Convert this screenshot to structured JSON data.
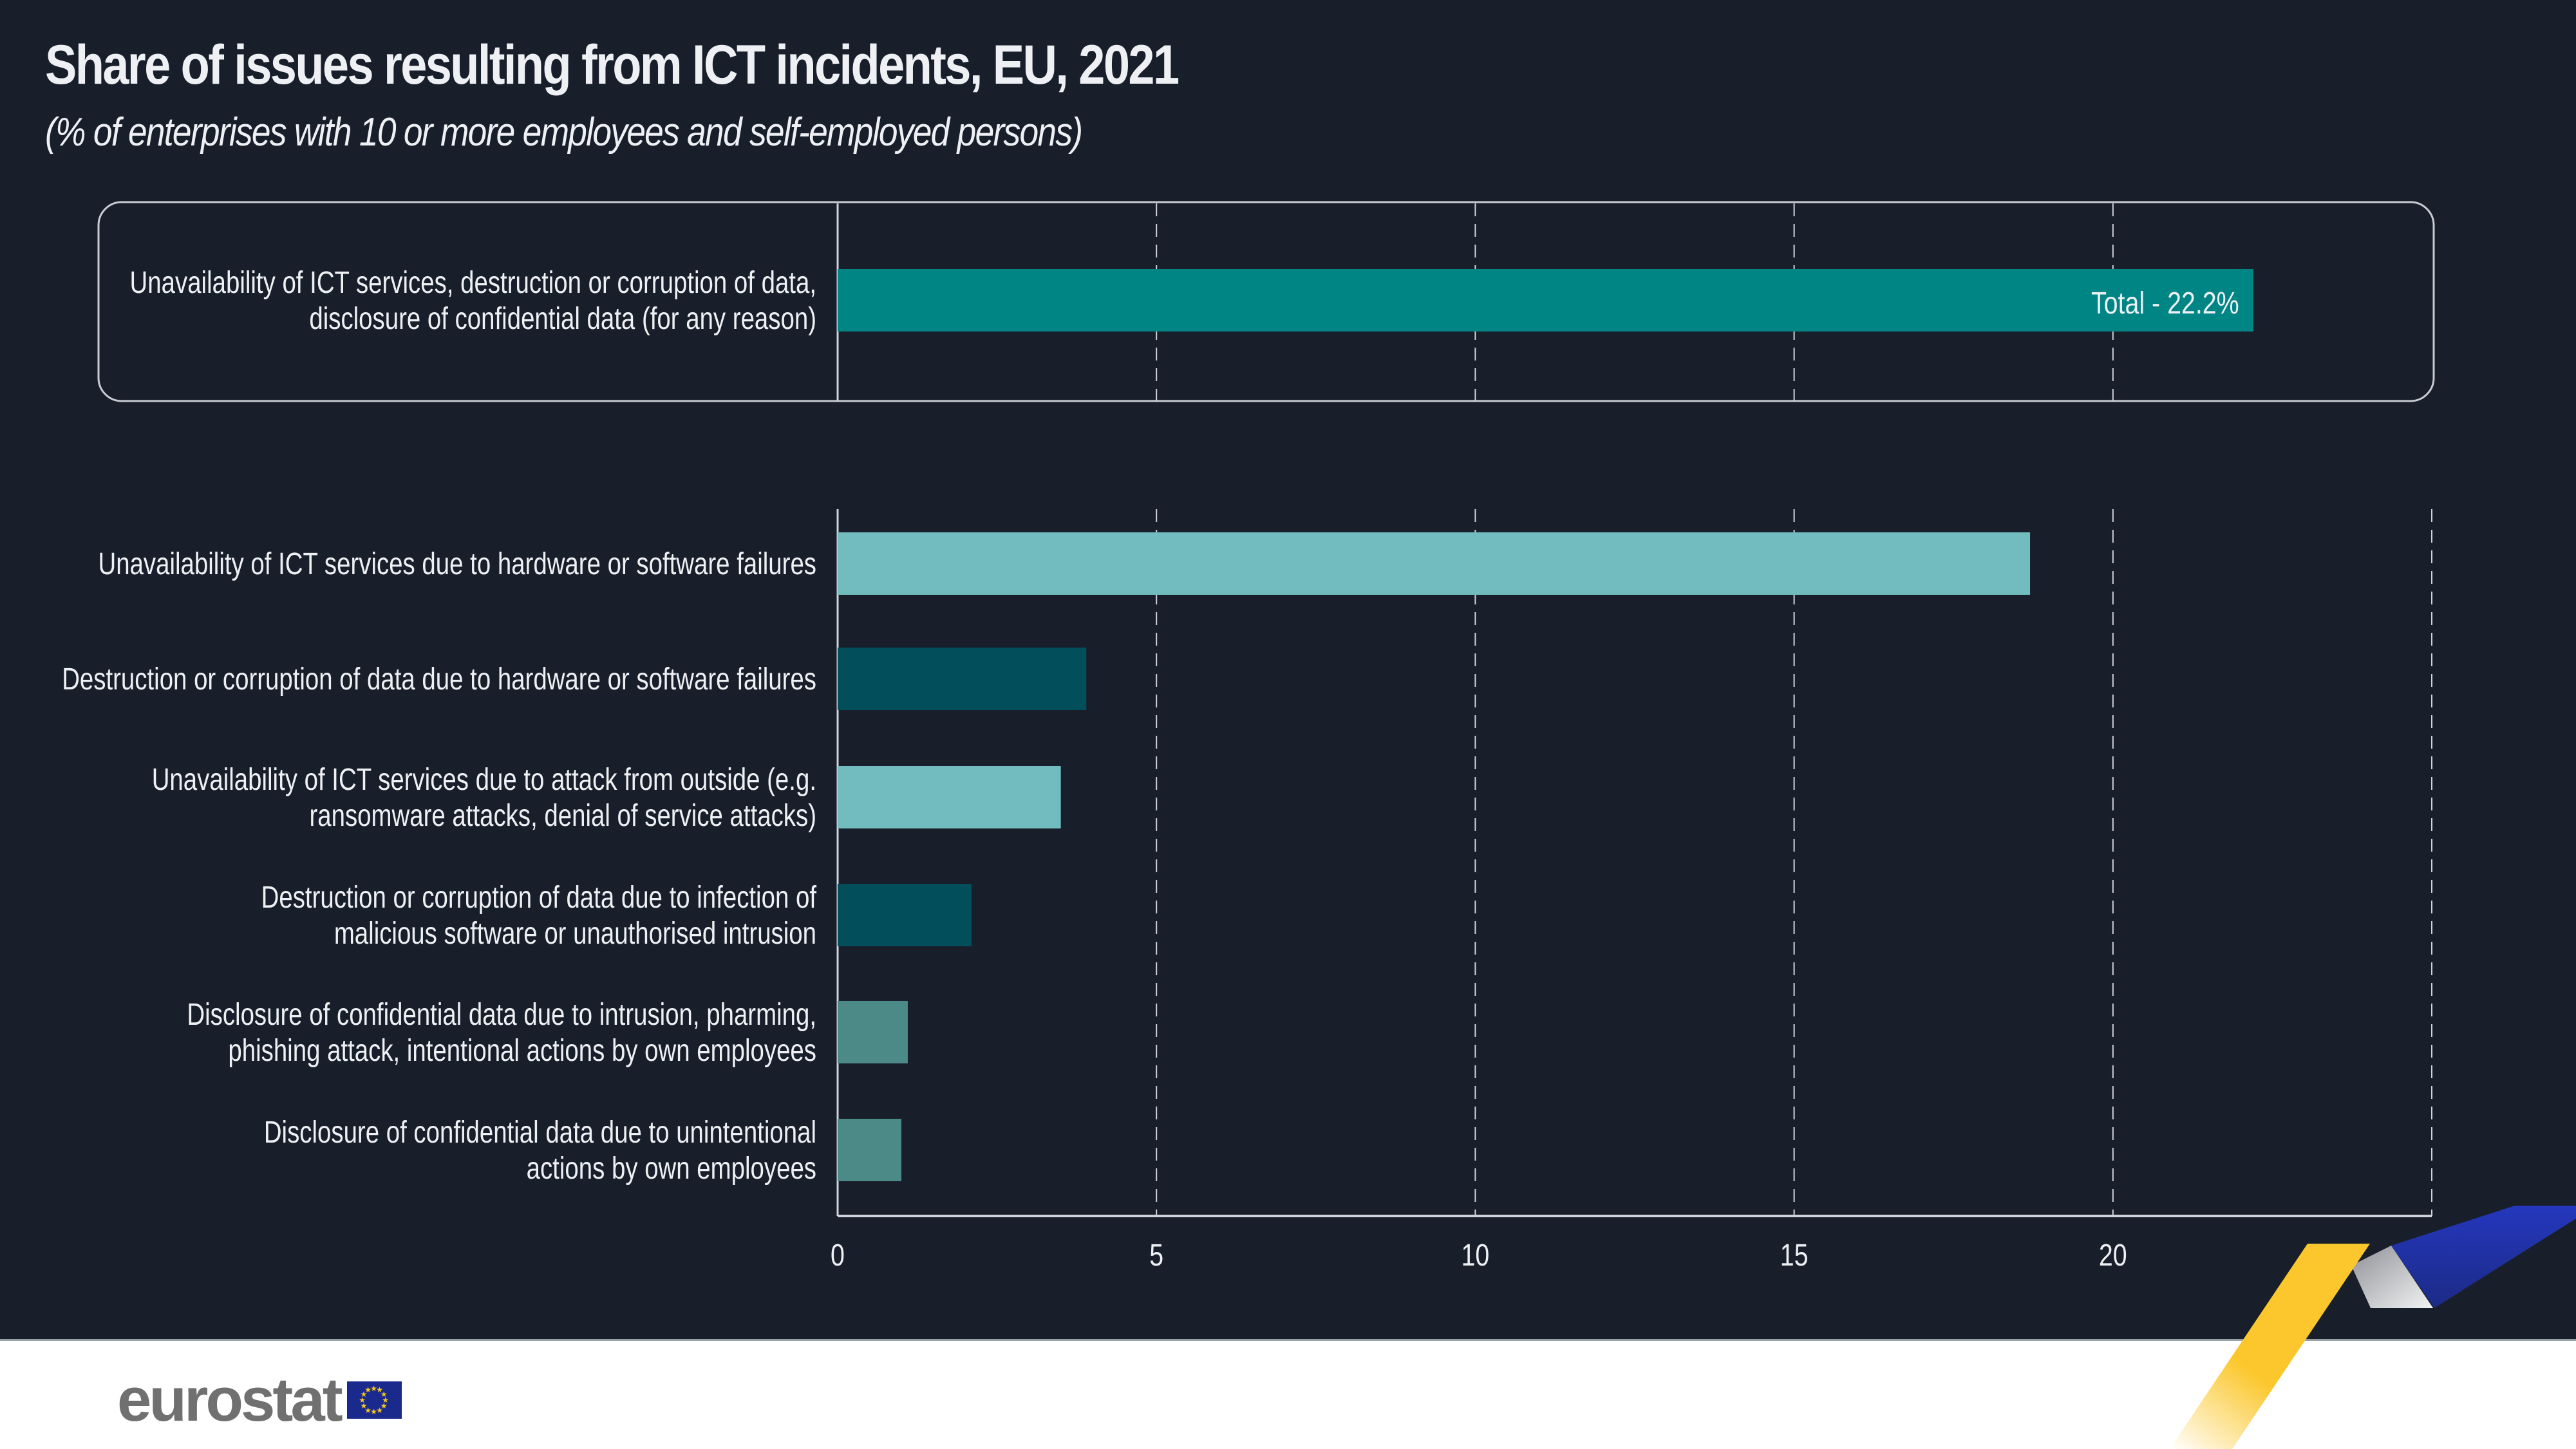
{
  "header": {
    "title": "Share of issues resulting from ICT incidents, EU, 2021",
    "subtitle": "(% of enterprises with 10 or more employees and self-employed persons)"
  },
  "branding": {
    "logo_text": "eurostat",
    "flag_icon": "eu-flag-icon"
  },
  "colors": {
    "background": "#181f2b",
    "total_bar": "#008585",
    "light_teal": "#72bcbf",
    "dark_teal": "#024e5a",
    "mid_teal": "#4c8a88",
    "ribbon_yellow": "#fbc72c",
    "ribbon_blue": "#2437bd",
    "ribbon_grey": "#b8babe"
  },
  "chart_data": {
    "type": "bar",
    "orientation": "horizontal",
    "title": "Share of issues resulting from ICT incidents, EU, 2021",
    "subtitle": "(% of enterprises with 10 or more employees and self-employed persons)",
    "xlabel": "",
    "ylabel": "",
    "xlim": [
      0,
      25
    ],
    "xticks": [
      0,
      5,
      10,
      15,
      20,
      25
    ],
    "grid": "vertical dashed",
    "total": {
      "label_lines": [
        "Unavailability of ICT services, destruction or corruption of data,",
        "disclosure of confidential data (for any reason)"
      ],
      "value": 22.2,
      "data_label": "Total - 22.2%",
      "color": "#008585"
    },
    "categories": [
      {
        "lines": [
          "Unavailability of ICT services due to hardware or software failures"
        ],
        "value": 18.7,
        "color": "#72bcbf"
      },
      {
        "lines": [
          "Destruction or corruption of data due to hardware or software failures"
        ],
        "value": 3.9,
        "color": "#024e5a"
      },
      {
        "lines": [
          "Unavailability of ICT services due to attack from outside (e.g.",
          "ransomware attacks, denial of service attacks)"
        ],
        "value": 3.5,
        "color": "#72bcbf"
      },
      {
        "lines": [
          "Destruction or corruption of data due to infection of",
          "malicious software or unauthorised intrusion"
        ],
        "value": 2.1,
        "color": "#024e5a"
      },
      {
        "lines": [
          "Disclosure of confidential data due to intrusion, pharming,",
          "phishing attack, intentional actions by own employees"
        ],
        "value": 1.1,
        "color": "#4c8a88"
      },
      {
        "lines": [
          "Disclosure of confidential data due to unintentional",
          "actions by own employees"
        ],
        "value": 1.0,
        "color": "#4c8a88"
      }
    ]
  }
}
